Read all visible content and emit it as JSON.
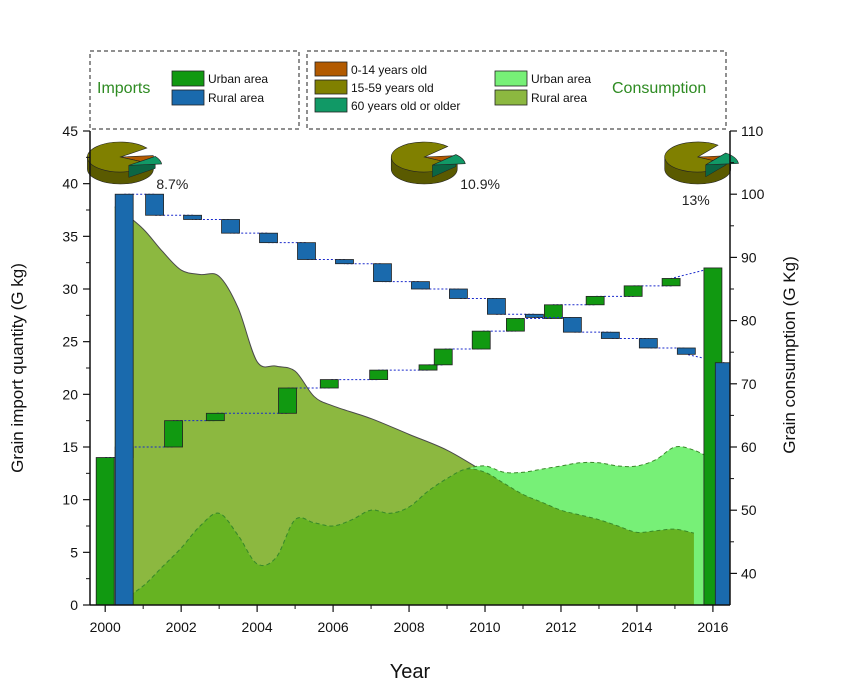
{
  "chart_data": {
    "type": "bar",
    "xlabel": "Year",
    "ylabel_left": "Grain import quantity (G kg)",
    "ylabel_right": "Grain consumption (G Kg)",
    "x_ticks": [
      "2000",
      "2002",
      "2004",
      "2006",
      "2008",
      "2010",
      "2012",
      "2014",
      "2016"
    ],
    "left_ticks": [
      "0",
      "5",
      "10",
      "15",
      "20",
      "25",
      "30",
      "35",
      "40",
      "45"
    ],
    "right_ticks": [
      "40",
      "50",
      "60",
      "70",
      "80",
      "90",
      "100",
      "110"
    ],
    "xlim": [
      1999.6,
      2016.45
    ],
    "ylim_left": [
      0,
      45
    ],
    "ylim_right": [
      35,
      110
    ],
    "legend": {
      "imports_title": "Imports",
      "imports": [
        {
          "label": "Urban area",
          "color": "#119911"
        },
        {
          "label": "Rural area",
          "color": "#1a6aad"
        }
      ],
      "age": [
        {
          "label": "0-14 years old",
          "color": "#b25a00"
        },
        {
          "label": "15-59 years old",
          "color": "#808000"
        },
        {
          "label": "60 years old or older",
          "color": "#119966"
        }
      ],
      "consumption": [
        {
          "label": "Urban area",
          "color": "#77f077"
        },
        {
          "label": "Rural area",
          "color": "#8cb840"
        }
      ],
      "consumption_title": "Consumption"
    },
    "imports_waterfall": {
      "urban": {
        "start": 14.0,
        "start_x": 2000,
        "end": 32.0,
        "end_x": 2016,
        "steps": [
          {
            "x": 2000.5,
            "from": 14.0,
            "to": 15.0
          },
          {
            "x": 2001.8,
            "from": 15.0,
            "to": 17.5
          },
          {
            "x": 2002.9,
            "from": 17.5,
            "to": 18.2
          },
          {
            "x": 2004.8,
            "from": 18.2,
            "to": 20.6
          },
          {
            "x": 2005.9,
            "from": 20.6,
            "to": 21.4
          },
          {
            "x": 2007.2,
            "from": 21.4,
            "to": 22.3
          },
          {
            "x": 2008.5,
            "from": 22.3,
            "to": 22.8
          },
          {
            "x": 2008.9,
            "from": 22.8,
            "to": 24.3
          },
          {
            "x": 2009.9,
            "from": 24.3,
            "to": 26.0
          },
          {
            "x": 2010.8,
            "from": 26.0,
            "to": 27.2
          },
          {
            "x": 2011.8,
            "from": 27.2,
            "to": 28.5
          },
          {
            "x": 2012.9,
            "from": 28.5,
            "to": 29.3
          },
          {
            "x": 2013.9,
            "from": 29.3,
            "to": 30.3
          },
          {
            "x": 2014.9,
            "from": 30.3,
            "to": 31.0
          }
        ]
      },
      "rural": {
        "start": 39.0,
        "start_x": 2000.5,
        "end": 23.0,
        "end_x": 2016.3,
        "steps": [
          {
            "x": 2001.3,
            "from": 39.0,
            "to": 37.0
          },
          {
            "x": 2002.3,
            "from": 37.0,
            "to": 36.6
          },
          {
            "x": 2003.3,
            "from": 36.6,
            "to": 35.3
          },
          {
            "x": 2004.3,
            "from": 35.3,
            "to": 34.4
          },
          {
            "x": 2005.3,
            "from": 34.4,
            "to": 32.8
          },
          {
            "x": 2006.3,
            "from": 32.8,
            "to": 32.4
          },
          {
            "x": 2007.3,
            "from": 32.4,
            "to": 30.7
          },
          {
            "x": 2008.3,
            "from": 30.7,
            "to": 30.0
          },
          {
            "x": 2009.3,
            "from": 30.0,
            "to": 29.1
          },
          {
            "x": 2010.3,
            "from": 29.1,
            "to": 27.6
          },
          {
            "x": 2011.3,
            "from": 27.6,
            "to": 27.3
          },
          {
            "x": 2012.3,
            "from": 27.3,
            "to": 25.9
          },
          {
            "x": 2013.3,
            "from": 25.9,
            "to": 25.3
          },
          {
            "x": 2014.3,
            "from": 25.3,
            "to": 24.4
          },
          {
            "x": 2015.3,
            "from": 24.4,
            "to": 23.8
          }
        ]
      },
      "bars": [
        {
          "series": "urban",
          "x": 2000,
          "value": 14.0
        },
        {
          "series": "rural",
          "x": 2000.5,
          "value": 39.0
        },
        {
          "series": "urban",
          "x": 2016,
          "value": 32.0
        },
        {
          "series": "rural",
          "x": 2016.3,
          "value": 23.0
        }
      ]
    },
    "consumption_area": {
      "rural": {
        "x": [
          2000.25,
          2000.4,
          2001,
          2001.5,
          2002,
          2002.5,
          2003,
          2003.5,
          2004,
          2004.5,
          2005,
          2005.5,
          2006,
          2007,
          2008,
          2009,
          2010,
          2011,
          2012,
          2013,
          2014,
          2015,
          2015.8
        ],
        "y": [
          98,
          97.5,
          94.5,
          91,
          88,
          87.3,
          87,
          82,
          73.5,
          72.8,
          72,
          68,
          66.5,
          64.5,
          62,
          59.5,
          56,
          52.5,
          50,
          48.5,
          46.5,
          47,
          46
        ]
      },
      "urban": {
        "x": [
          2000.5,
          2001,
          2001.5,
          2002,
          2002.5,
          2003,
          2003.5,
          2004,
          2004.5,
          2005,
          2005.5,
          2006,
          2006.5,
          2007,
          2007.5,
          2008,
          2008.5,
          2009,
          2009.5,
          2010,
          2010.5,
          2011,
          2011.5,
          2012,
          2012.5,
          2013,
          2013.5,
          2014,
          2014.5,
          2015,
          2015.5,
          2016
        ],
        "y": [
          36,
          38,
          41,
          44,
          47.5,
          49.5,
          46,
          41.5,
          42.5,
          48.5,
          48,
          47.5,
          48.5,
          50,
          49.5,
          50.5,
          53,
          55,
          56.5,
          57,
          56,
          56,
          56.5,
          57,
          57.5,
          57.5,
          57,
          57,
          58,
          60,
          59.5,
          58
        ]
      }
    },
    "pies": [
      {
        "x": 2000.4,
        "label": "8.7%",
        "slices": [
          {
            "name": "0-14 years old",
            "value": 8.7
          },
          {
            "name": "15-59 years old",
            "value": 82.6
          },
          {
            "name": "60 years old or older",
            "value": 8.7
          }
        ]
      },
      {
        "x": 2008.4,
        "label": "10.9%",
        "slices": [
          {
            "name": "0-14 years old",
            "value": 9
          },
          {
            "name": "15-59 years old",
            "value": 80.1
          },
          {
            "name": "60 years old or older",
            "value": 10.9
          }
        ]
      },
      {
        "x": 2015.6,
        "label": "13%",
        "slices": [
          {
            "name": "0-14 years old",
            "value": 9
          },
          {
            "name": "15-59 years old",
            "value": 78
          },
          {
            "name": "60 years old or older",
            "value": 13
          }
        ]
      }
    ]
  }
}
